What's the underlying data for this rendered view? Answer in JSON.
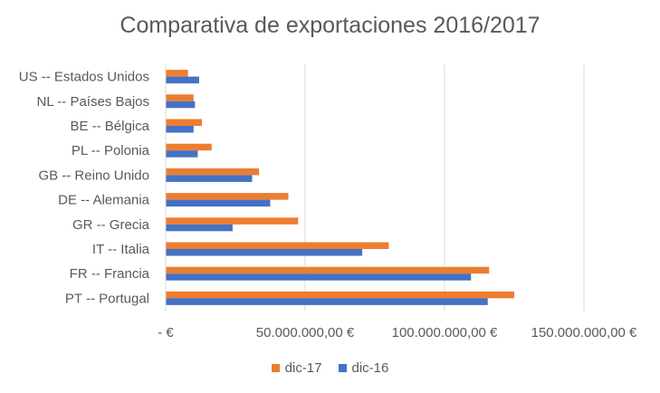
{
  "chart_data": {
    "type": "bar",
    "orientation": "horizontal",
    "title": "Comparativa de exportaciones 2016/2017",
    "categories": [
      "US -- Estados Unidos",
      "NL -- Países Bajos",
      "BE -- Bélgica",
      "PL -- Polonia",
      "GB -- Reino Unido",
      "DE -- Alemania",
      "GR -- Grecia",
      "IT -- Italia",
      "FR -- Francia",
      "PT -- Portugal"
    ],
    "series": [
      {
        "name": "dic-17",
        "color": "#ED7D31",
        "values": [
          8000000,
          10000000,
          13000000,
          16500000,
          33500000,
          44000000,
          47500000,
          80000000,
          116000000,
          125000000
        ]
      },
      {
        "name": "dic-16",
        "color": "#4472C4",
        "values": [
          12000000,
          10500000,
          10000000,
          11500000,
          31000000,
          37500000,
          24000000,
          70500000,
          109500000,
          115500000
        ]
      }
    ],
    "xlim": [
      0,
      150000000
    ],
    "xticks": [
      0,
      50000000,
      100000000,
      150000000
    ],
    "xtick_labels": [
      "-   €",
      "50.000.000,00 €",
      "100.000.000,00 €",
      "150.000.000,00 €"
    ],
    "grid": "vertical",
    "legend_position": "bottom"
  }
}
